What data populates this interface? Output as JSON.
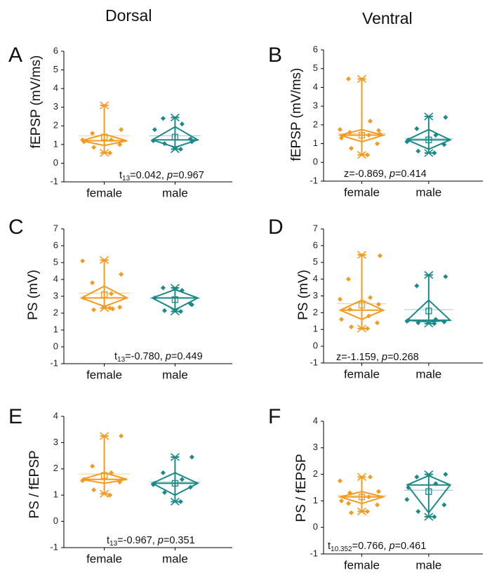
{
  "column_titles": {
    "dorsal": "Dorsal",
    "ventral": "Ventral"
  },
  "colors": {
    "female": "#f39a1f",
    "male": "#1a8a88",
    "axis": "#000000"
  },
  "chart_data": [
    {
      "panel": "A",
      "type": "box",
      "ylabel": "fEPSP (mV/ms)",
      "ylim": [
        -1,
        6
      ],
      "yticks": [
        -1,
        0,
        1,
        2,
        3,
        4,
        5,
        6
      ],
      "categories": [
        "female",
        "male"
      ],
      "series": [
        {
          "name": "female",
          "min": 0.55,
          "q1": 0.95,
          "median": 1.2,
          "q3": 1.55,
          "max": 3.1,
          "mean": 1.4,
          "points": [
            0.55,
            0.85,
            1.0,
            1.15,
            1.25,
            1.6,
            1.8,
            1.25
          ]
        },
        {
          "name": "male",
          "min": 0.75,
          "q1": 0.85,
          "median": 1.25,
          "q3": 1.95,
          "max": 2.45,
          "mean": 1.4,
          "points": [
            0.75,
            1.05,
            1.3,
            1.8,
            2.1,
            2.4,
            1.15,
            1.2
          ]
        }
      ],
      "stat": {
        "pre": "t",
        "sub": "13",
        "z": null,
        "value": "=0.042, ",
        "pname": "p",
        "pval": "=0.967"
      }
    },
    {
      "panel": "B",
      "type": "box",
      "ylabel": "fEPSP (mV/ms)",
      "ylim": [
        -1,
        6
      ],
      "yticks": [
        -1,
        0,
        1,
        2,
        3,
        4,
        5,
        6
      ],
      "categories": [
        "female",
        "male"
      ],
      "series": [
        {
          "name": "female",
          "min": 0.4,
          "q1": 1.1,
          "median": 1.45,
          "q3": 1.75,
          "max": 4.45,
          "mean": 1.45,
          "points": [
            0.4,
            0.75,
            1.0,
            1.3,
            1.45,
            1.6,
            1.7,
            1.75,
            2.2,
            4.45,
            1.5
          ]
        },
        {
          "name": "male",
          "min": 0.5,
          "q1": 0.7,
          "median": 1.2,
          "q3": 1.75,
          "max": 2.45,
          "mean": 1.2,
          "points": [
            0.5,
            0.6,
            0.95,
            1.2,
            1.45,
            1.8,
            2.4,
            1.1
          ]
        }
      ],
      "stat": {
        "pre": "z",
        "sub": "",
        "z": null,
        "value": "=-0.869, ",
        "pname": "p",
        "pval": "=0.414"
      }
    },
    {
      "panel": "C",
      "type": "box",
      "ylabel": "PS (mV)",
      "ylim": [
        -1,
        7
      ],
      "yticks": [
        -1,
        0,
        1,
        2,
        3,
        4,
        5,
        6,
        7
      ],
      "categories": [
        "female",
        "male"
      ],
      "series": [
        {
          "name": "female",
          "min": 2.3,
          "q1": 2.4,
          "median": 2.9,
          "q3": 3.6,
          "max": 5.15,
          "mean": 3.1,
          "points": [
            2.3,
            2.2,
            2.35,
            2.9,
            3.15,
            3.8,
            4.3,
            5.1,
            2.25
          ]
        },
        {
          "name": "male",
          "min": 2.1,
          "q1": 2.2,
          "median": 2.9,
          "q3": 3.4,
          "max": 3.5,
          "mean": 2.8,
          "points": [
            2.1,
            2.15,
            2.55,
            2.9,
            3.35,
            3.5,
            2.5
          ]
        }
      ],
      "stat": {
        "pre": "t",
        "sub": "13",
        "z": null,
        "value": "=-0.780, ",
        "pname": "p",
        "pval": "=0.449"
      }
    },
    {
      "panel": "D",
      "type": "box",
      "ylabel": "PS (mV)",
      "ylim": [
        -1,
        7
      ],
      "yticks": [
        -1,
        0,
        1,
        2,
        3,
        4,
        5,
        6,
        7
      ],
      "categories": [
        "female",
        "male"
      ],
      "series": [
        {
          "name": "female",
          "min": 1.05,
          "q1": 1.6,
          "median": 2.15,
          "q3": 2.75,
          "max": 5.45,
          "mean": 2.45,
          "points": [
            1.05,
            1.15,
            1.4,
            1.6,
            1.8,
            2.2,
            2.5,
            2.8,
            2.9,
            4.0,
            5.4
          ]
        },
        {
          "name": "male",
          "min": 1.35,
          "q1": 1.45,
          "median": 1.55,
          "q3": 2.75,
          "max": 4.25,
          "mean": 2.1,
          "points": [
            1.35,
            1.4,
            1.45,
            1.55,
            1.6,
            3.6,
            4.15,
            1.5
          ]
        }
      ],
      "stat": {
        "pre": "z",
        "sub": "",
        "z": null,
        "value": "=-1.159, ",
        "pname": "p",
        "pval": "=0.268"
      }
    },
    {
      "panel": "E",
      "type": "box",
      "ylabel": "PS / fEPSP",
      "ylim": [
        -1,
        4
      ],
      "yticks": [
        -1,
        0,
        1,
        2,
        3,
        4
      ],
      "categories": [
        "female",
        "male"
      ],
      "series": [
        {
          "name": "female",
          "min": 1.05,
          "q1": 1.45,
          "median": 1.6,
          "q3": 1.85,
          "max": 3.25,
          "mean": 1.75,
          "points": [
            1.0,
            1.2,
            1.5,
            1.6,
            1.85,
            2.1,
            3.25,
            1.55
          ]
        },
        {
          "name": "male",
          "min": 0.75,
          "q1": 1.0,
          "median": 1.45,
          "q3": 1.85,
          "max": 2.45,
          "mean": 1.45,
          "points": [
            0.75,
            1.1,
            1.3,
            1.45,
            1.6,
            1.85,
            2.45,
            1.4
          ]
        }
      ],
      "stat": {
        "pre": "t",
        "sub": "13",
        "z": null,
        "value": "=-0.967, ",
        "pname": "p",
        "pval": "=0.351"
      }
    },
    {
      "panel": "F",
      "type": "box",
      "ylabel": "PS / fEPSP",
      "ylim": [
        -1,
        4
      ],
      "yticks": [
        -1,
        0,
        1,
        2,
        3,
        4
      ],
      "categories": [
        "female",
        "male"
      ],
      "series": [
        {
          "name": "female",
          "min": 0.6,
          "q1": 0.9,
          "median": 1.15,
          "q3": 1.35,
          "max": 1.9,
          "mean": 1.15,
          "points": [
            0.6,
            0.55,
            0.85,
            1.0,
            1.15,
            1.3,
            1.35,
            1.75,
            1.9,
            0.9
          ]
        },
        {
          "name": "male",
          "min": 0.4,
          "q1": 0.55,
          "median": 1.6,
          "q3": 1.95,
          "max": 2.0,
          "mean": 1.35,
          "points": [
            0.4,
            0.6,
            0.85,
            1.5,
            1.65,
            1.9,
            2.0,
            1.05
          ]
        }
      ],
      "stat": {
        "pre": "t",
        "sub": "10.352",
        "z": null,
        "value": "=0.766, ",
        "pname": "p",
        "pval": "=0.461"
      }
    }
  ]
}
